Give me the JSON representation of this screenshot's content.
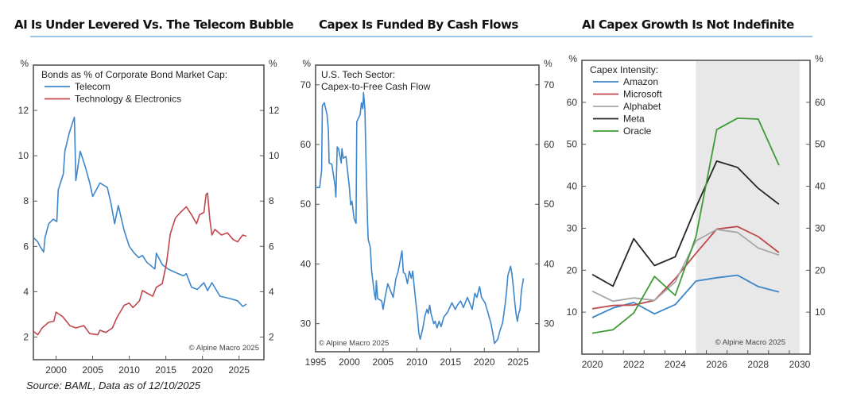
{
  "titles": {
    "left": "AI Is Under Levered Vs. The Telecom Bubble",
    "middle": "Capex Is Funded By Cash Flows",
    "right": "AI Capex Growth Is Not Indefinite"
  },
  "source": "Source: BAML, Data as of 12/10/2025",
  "colors": {
    "telecom": "#3c86cc",
    "technology": "#c0474b",
    "amazon": "#3c86cc",
    "microsoft": "#c0474b",
    "alphabet": "#a6a6a6",
    "meta": "#262626",
    "oracle": "#3f9b36",
    "rule": "#9dc3e6",
    "forecast_shade": "#e8e8e8",
    "frame": "#555555"
  },
  "chart_data": [
    {
      "type": "line",
      "title": "AI Is Under Levered Vs. The Telecom Bubble",
      "legend_title": "Bonds as % of Corporate Bond Market Cap:",
      "legend_position": "top-left",
      "ylabel_left": "%",
      "ylabel_right": "%",
      "ylim": [
        1,
        14
      ],
      "yticks": [
        2,
        4,
        6,
        8,
        10,
        12
      ],
      "xlim": [
        1996.9,
        2028.4
      ],
      "xticks": [
        2000,
        2005,
        2010,
        2015,
        2020,
        2025
      ],
      "annotation": "© Alpine Macro 2025",
      "series": [
        {
          "name": "Telecom",
          "color_key": "telecom",
          "x": [
            1996.9,
            1997.5,
            1997.8,
            1998.3,
            1998.5,
            1999.0,
            1999.6,
            2000.1,
            2000.3,
            2001.0,
            2001.2,
            2001.8,
            2002.3,
            2002.5,
            2002.7,
            2003.3,
            2004.0,
            2004.6,
            2005.0,
            2006.0,
            2007.0,
            2007.5,
            2008.0,
            2008.5,
            2009.3,
            2010.0,
            2010.7,
            2011.3,
            2011.8,
            2012.4,
            2013.5,
            2013.7,
            2014.5,
            2015.3,
            2016.3,
            2017.4,
            2017.8,
            2018.5,
            2019.3,
            2020.2,
            2020.7,
            2021.3,
            2022.4,
            2023.7,
            2024.8,
            2025.5,
            2026.0
          ],
          "y": [
            6.4,
            6.2,
            6.0,
            5.75,
            6.4,
            7.0,
            7.2,
            7.1,
            8.5,
            9.2,
            10.2,
            11.0,
            11.5,
            11.7,
            8.9,
            10.2,
            9.5,
            8.8,
            8.2,
            8.8,
            8.6,
            7.9,
            7.0,
            7.8,
            6.7,
            6.0,
            5.7,
            5.5,
            5.6,
            5.3,
            5.0,
            5.7,
            5.2,
            5.0,
            4.85,
            4.7,
            4.8,
            4.2,
            4.1,
            4.4,
            4.05,
            4.4,
            3.8,
            3.7,
            3.6,
            3.35,
            3.45
          ]
        },
        {
          "name": "Technology & Electronics",
          "color_key": "technology",
          "x": [
            1996.9,
            1997.5,
            1998.1,
            1999.0,
            1999.7,
            2000.0,
            2000.9,
            2001.9,
            2002.7,
            2003.8,
            2004.6,
            2005.7,
            2006.0,
            2006.8,
            2007.7,
            2008.3,
            2009.3,
            2010.0,
            2010.5,
            2011.4,
            2011.8,
            2013.2,
            2013.7,
            2014.5,
            2014.8,
            2015.1,
            2015.6,
            2016.3,
            2017.0,
            2017.8,
            2018.5,
            2019.2,
            2019.6,
            2020.2,
            2020.5,
            2020.7,
            2021.0,
            2021.3,
            2021.7,
            2022.6,
            2023.4,
            2024.2,
            2024.8,
            2025.5,
            2026.0
          ],
          "y": [
            2.25,
            2.1,
            2.4,
            2.65,
            2.7,
            3.1,
            2.9,
            2.5,
            2.4,
            2.5,
            2.15,
            2.1,
            2.3,
            2.2,
            2.4,
            2.85,
            3.4,
            3.5,
            3.3,
            3.6,
            4.05,
            3.8,
            4.2,
            4.35,
            4.8,
            5.3,
            6.55,
            7.25,
            7.5,
            7.75,
            7.4,
            7.0,
            7.4,
            7.5,
            8.3,
            8.35,
            7.2,
            6.5,
            6.75,
            6.5,
            6.6,
            6.3,
            6.2,
            6.5,
            6.45
          ]
        }
      ]
    },
    {
      "type": "line",
      "title": "Capex Is Funded By Cash Flows",
      "legend_title": "U.S. Tech Sector:",
      "legend_subtitle": "Capex-to-Free Cash Flow",
      "legend_position": "top-left",
      "ylabel_left": "%",
      "ylabel_right": "%",
      "ylim": [
        25.3,
        73.3
      ],
      "yticks": [
        30,
        40,
        50,
        60,
        70
      ],
      "xlim": [
        1995,
        2028.1
      ],
      "xticks": [
        1995,
        2000,
        2005,
        2010,
        2015,
        2020,
        2025
      ],
      "annotation": "© Alpine Macro 2025",
      "series": [
        {
          "name": "Capex-to-Free Cash Flow",
          "color_key": "telecom",
          "x": [
            1995.0,
            1995.6,
            1995.9,
            1996.0,
            1996.3,
            1996.7,
            1996.9,
            1997.0,
            1997.4,
            1997.9,
            1998.0,
            1998.2,
            1998.4,
            1998.8,
            1998.9,
            1999.1,
            1999.5,
            2000.0,
            2000.2,
            2000.4,
            2000.7,
            2001.0,
            2001.1,
            2001.6,
            2001.8,
            2002.0,
            2002.1,
            2002.3,
            2002.5,
            2002.7,
            2002.8,
            2003.1,
            2003.3,
            2003.7,
            2003.9,
            2004.0,
            2004.2,
            2004.8,
            2005.0,
            2005.3,
            2005.7,
            2006.5,
            2006.9,
            2007.2,
            2007.6,
            2007.8,
            2008.0,
            2008.3,
            2008.6,
            2008.9,
            2009.2,
            2009.4,
            2009.6,
            2009.8,
            2010.1,
            2010.3,
            2010.5,
            2010.9,
            2011.2,
            2011.5,
            2011.7,
            2011.9,
            2012.1,
            2012.5,
            2012.7,
            2013.0,
            2013.3,
            2013.6,
            2014.0,
            2014.6,
            2015.2,
            2015.7,
            2016.0,
            2016.5,
            2016.9,
            2017.5,
            2018.2,
            2018.6,
            2018.9,
            2019.3,
            2019.6,
            2020.1,
            2020.5,
            2021.0,
            2021.3,
            2021.5,
            2022.0,
            2022.3,
            2022.7,
            2023.1,
            2023.3,
            2023.5,
            2023.9,
            2024.1,
            2024.3,
            2024.5,
            2024.7,
            2024.9,
            2025.1,
            2025.3,
            2025.5,
            2025.8
          ],
          "y": [
            52.8,
            52.8,
            55.7,
            66.5,
            67.0,
            65.0,
            62.4,
            56.9,
            56.7,
            53.0,
            51.2,
            59.6,
            59.3,
            56.9,
            59.3,
            57.7,
            58.0,
            53.0,
            49.9,
            50.5,
            47.6,
            46.8,
            63.8,
            65.0,
            67.0,
            66.0,
            68.7,
            66.0,
            55.7,
            46.8,
            44.1,
            42.8,
            38.8,
            35.1,
            34.0,
            37.2,
            34.2,
            33.8,
            32.4,
            34.4,
            36.7,
            34.4,
            37.6,
            38.6,
            41.0,
            42.2,
            38.6,
            38.3,
            36.7,
            38.8,
            37.6,
            38.8,
            36.4,
            34.2,
            31.1,
            28.4,
            27.4,
            29.3,
            31.3,
            32.4,
            31.7,
            33.1,
            31.7,
            30.0,
            30.4,
            29.3,
            30.4,
            29.5,
            31.1,
            32.0,
            33.5,
            32.4,
            33.1,
            33.8,
            32.7,
            34.4,
            32.4,
            35.1,
            34.4,
            36.2,
            34.4,
            33.5,
            32.0,
            30.0,
            28.1,
            26.7,
            27.4,
            28.8,
            30.1,
            33.4,
            35.5,
            38.1,
            39.6,
            38.3,
            36.2,
            33.8,
            31.7,
            30.4,
            31.7,
            32.4,
            35.5,
            37.6
          ]
        }
      ]
    },
    {
      "type": "line",
      "title": "AI Capex Growth Is Not Indefinite",
      "legend_title": "Capex Intensity:",
      "legend_position": "top-left",
      "ylabel_left": "%",
      "ylabel_right": "%",
      "ylim": [
        0,
        70
      ],
      "yticks": [
        10,
        20,
        30,
        40,
        50,
        60
      ],
      "xlim": [
        2019.5,
        2030.5
      ],
      "xticks": [
        2020,
        2022,
        2024,
        2026,
        2028,
        2030
      ],
      "shaded_region": [
        2025,
        2030
      ],
      "annotation": "© Alpine Macro 2025",
      "x": [
        2020,
        2021,
        2022,
        2023,
        2024,
        2025,
        2026,
        2027,
        2028,
        2029
      ],
      "series": [
        {
          "name": "Amazon",
          "color_key": "amazon",
          "values": [
            8.7,
            11.0,
            12.3,
            9.6,
            11.8,
            17.4,
            18.2,
            18.8,
            16.1,
            14.8
          ]
        },
        {
          "name": "Microsoft",
          "color_key": "microsoft",
          "values": [
            10.8,
            11.6,
            11.7,
            12.8,
            18.0,
            24.0,
            29.8,
            30.4,
            28.0,
            24.2
          ]
        },
        {
          "name": "Alphabet",
          "color_key": "alphabet",
          "values": [
            15.0,
            12.6,
            13.4,
            12.8,
            17.2,
            27.0,
            29.7,
            29.0,
            25.3,
            23.6
          ]
        },
        {
          "name": "Meta",
          "color_key": "meta",
          "values": [
            19.0,
            16.2,
            27.5,
            21.1,
            23.2,
            35.0,
            46.0,
            44.5,
            39.5,
            35.7
          ]
        },
        {
          "name": "Oracle",
          "color_key": "oracle",
          "values": [
            5.0,
            5.8,
            9.8,
            18.5,
            14.0,
            28.0,
            53.5,
            56.2,
            56.0,
            45.0
          ]
        }
      ]
    }
  ]
}
